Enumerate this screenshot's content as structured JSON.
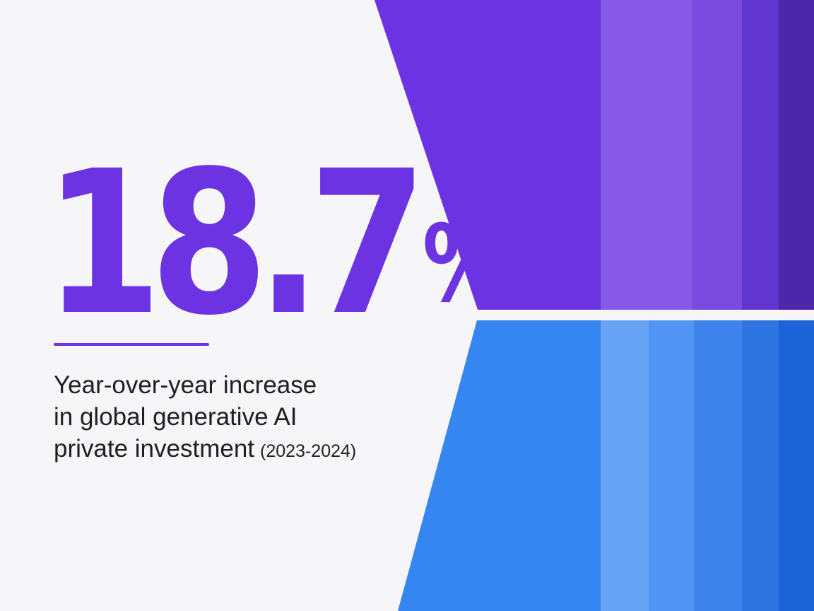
{
  "stat": {
    "value": "18.7",
    "unit": "%"
  },
  "description": {
    "line1": "Year-over-year increase",
    "line2": "in global generative AI",
    "line3": "private investment",
    "period": "(2023-2024)"
  },
  "colors": {
    "background": "#f6f6f8",
    "accent": "#6c33e3",
    "text": "#1f1f24",
    "purple_bands": [
      "#6c33e3",
      "#8659e6",
      "#7a4bdf",
      "#6135cf",
      "#4c27a9"
    ],
    "blue_bands": [
      "#3586f0",
      "#68a4f6",
      "#5295f4",
      "#3f84ec",
      "#2f75e1",
      "#1d63d8"
    ]
  }
}
